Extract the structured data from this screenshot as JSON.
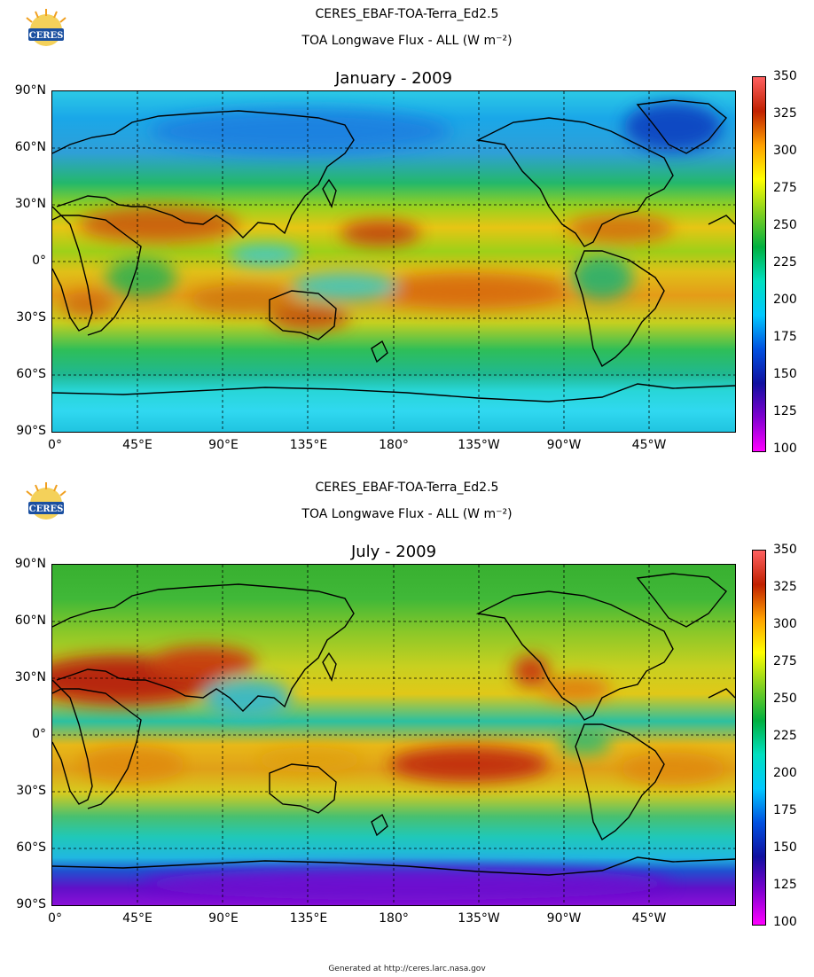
{
  "dataset": "CERES_EBAF-TOA-Terra_Ed2.5",
  "variable_title": "TOA Longwave Flux - ALL (W m⁻²)",
  "logo_text": "CERES",
  "lat_labels": [
    "90°N",
    "60°N",
    "30°N",
    "0°",
    "30°S",
    "60°S",
    "90°S"
  ],
  "lon_labels": [
    "0°",
    "45°E",
    "90°E",
    "135°E",
    "180°",
    "135°W",
    "90°W",
    "45°W"
  ],
  "colorbar": {
    "ticks": [
      "350",
      "325",
      "300",
      "275",
      "250",
      "225",
      "200",
      "175",
      "150",
      "125",
      "100"
    ],
    "colors": [
      "#ff00ff",
      "#8000d0",
      "#1010a0",
      "#0050e0",
      "#00c8ff",
      "#00e0c0",
      "#00b040",
      "#80d020",
      "#ffff00",
      "#ffa000",
      "#c02000",
      "#ff6060"
    ]
  },
  "panels": [
    {
      "id": "jan",
      "title": "January - 2009"
    },
    {
      "id": "jul",
      "title": "July - 2009"
    }
  ],
  "footer": "Generated at http://ceres.larc.nasa.gov"
}
